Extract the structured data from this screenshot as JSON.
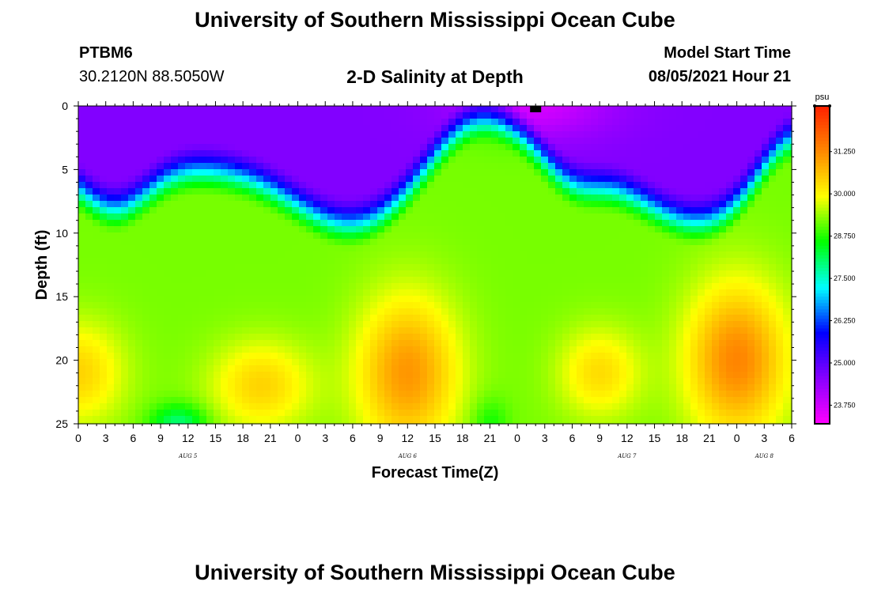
{
  "page": {
    "title_top": "University of Southern Mississippi Ocean Cube",
    "title_bottom": "University of Southern Mississippi Ocean Cube",
    "station": "PTBM6",
    "coords": "30.2120N  88.5050W",
    "plot_title": "2-D Salinity at Depth",
    "model_start_label": "Model Start Time",
    "model_start_time": "08/05/2021 Hour 21"
  },
  "chart_data": {
    "type": "heatmap",
    "title": "2-D Salinity at Depth",
    "xlabel": "Forecast Time(Z)",
    "ylabel": "Depth (ft)",
    "x_start_hour": 0,
    "x_end_hour": 78,
    "x_ticks": [
      "0",
      "3",
      "6",
      "9",
      "12",
      "15",
      "18",
      "21",
      "0",
      "3",
      "6",
      "9",
      "12",
      "15",
      "18",
      "21",
      "0",
      "3",
      "6",
      "9",
      "12",
      "15",
      "18",
      "21",
      "0",
      "3",
      "6"
    ],
    "date_labels": [
      {
        "label": "AUG 5",
        "hour": 12
      },
      {
        "label": "AUG 6",
        "hour": 36
      },
      {
        "label": "AUG 7",
        "hour": 60
      },
      {
        "label": "AUG 8",
        "hour": 75
      }
    ],
    "ylim": [
      0,
      25
    ],
    "y_ticks": [
      0,
      5,
      10,
      15,
      20,
      25
    ],
    "colorbar": {
      "unit": "psu",
      "min": 23.2,
      "max": 32.6,
      "ticks": [
        "31.250",
        "30.000",
        "28.750",
        "27.500",
        "26.250",
        "25.000",
        "23.750"
      ],
      "tick_values": [
        31.25,
        30.0,
        28.75,
        27.5,
        26.25,
        25.0,
        23.75
      ]
    },
    "model_start_marker_hour": 50,
    "value_range_psu": [
      23.5,
      32.5
    ],
    "features": [
      {
        "type": "low",
        "hour": 50,
        "depth": 0,
        "value": 23.5
      },
      {
        "type": "high",
        "hour": 36,
        "depth": 21,
        "value": 32.5
      },
      {
        "type": "high",
        "hour": 72,
        "depth": 20,
        "value": 32.4
      },
      {
        "type": "high",
        "hour": 2,
        "depth": 21,
        "value": 31.7
      },
      {
        "type": "high",
        "hour": 20,
        "depth": 21.5,
        "value": 31.2
      },
      {
        "type": "high",
        "hour": 58,
        "depth": 21,
        "value": 31.3
      }
    ],
    "colors": {
      "scale": [
        "#ff00ff",
        "#8800ff",
        "#0000ff",
        "#00ffff",
        "#00ff00",
        "#ffff00",
        "#ff8800",
        "#ff2000"
      ]
    }
  }
}
